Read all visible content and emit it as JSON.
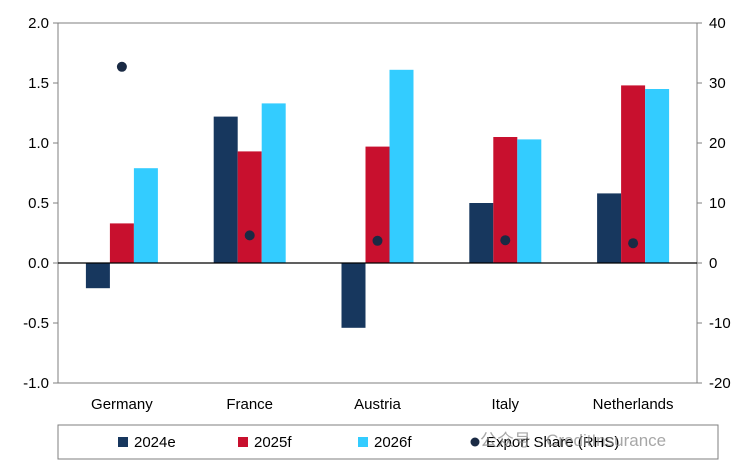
{
  "chart_data": {
    "type": "bar",
    "categories": [
      "Germany",
      "France",
      "Austria",
      "Italy",
      "Netherlands"
    ],
    "series": [
      {
        "name": "2024e",
        "values": [
          -0.21,
          1.22,
          -0.54,
          0.5,
          0.58
        ],
        "color": "#17375e",
        "axis": "left"
      },
      {
        "name": "2025f",
        "values": [
          0.33,
          0.93,
          0.97,
          1.05,
          1.48
        ],
        "color": "#c8102e",
        "axis": "left"
      },
      {
        "name": "2026f",
        "values": [
          0.79,
          1.33,
          1.61,
          1.03,
          1.45
        ],
        "color": "#33ccff",
        "axis": "left"
      },
      {
        "name": "Export Share (RHS)",
        "values": [
          32.7,
          4.6,
          3.7,
          3.8,
          3.3
        ],
        "color": "#1a2a44",
        "axis": "right",
        "marker": "dot"
      }
    ],
    "ylim": [
      -1.0,
      2.0
    ],
    "yticks": [
      "-1.0",
      "-0.5",
      "0.0",
      "0.5",
      "1.0",
      "1.5",
      "2.0"
    ],
    "y2lim": [
      -20,
      40
    ],
    "y2ticks": [
      "-20",
      "-10",
      "0",
      "10",
      "20",
      "30",
      "40"
    ],
    "legend_position": "bottom",
    "grid": false
  },
  "watermark": "公众号 · CreditInsurance"
}
